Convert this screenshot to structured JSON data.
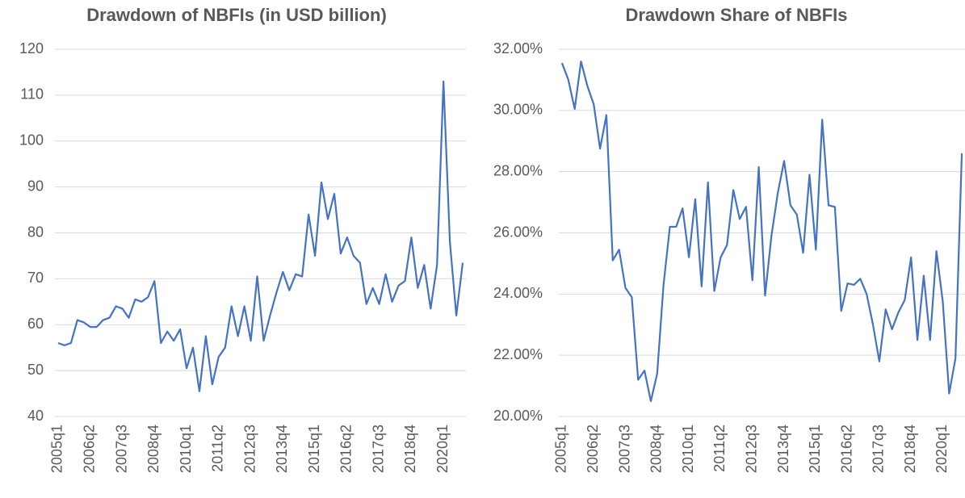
{
  "chart_data": [
    {
      "type": "line",
      "title": "Drawdown of NBFIs (in USD billion)",
      "categories": [
        "2005q1",
        null,
        null,
        null,
        null,
        "2006q2",
        null,
        null,
        null,
        null,
        "2007q3",
        null,
        null,
        null,
        null,
        "2008q4",
        null,
        null,
        null,
        null,
        "2010q1",
        null,
        null,
        null,
        null,
        "2011q2",
        null,
        null,
        null,
        null,
        "2012q3",
        null,
        null,
        null,
        null,
        "2013q4",
        null,
        null,
        null,
        null,
        "2015q1",
        null,
        null,
        null,
        null,
        "2016q2",
        null,
        null,
        null,
        null,
        "2017q3",
        null,
        null,
        null,
        null,
        "2018q4",
        null,
        null,
        null,
        null,
        "2020q1",
        null,
        null,
        null
      ],
      "values": [
        56,
        55.5,
        56,
        61,
        60.5,
        59.5,
        59.5,
        61,
        61.5,
        64,
        63.5,
        61.5,
        65.5,
        65,
        66,
        69.5,
        56,
        58.5,
        56.5,
        59,
        50.5,
        55,
        45.5,
        57.5,
        47,
        53,
        55,
        64,
        57.5,
        64,
        56.5,
        70.5,
        56.5,
        62,
        67,
        71.5,
        67.5,
        71,
        70.5,
        84,
        75,
        91,
        83,
        88.5,
        75.5,
        79,
        75,
        73.5,
        64.5,
        68,
        64.5,
        71,
        65,
        68.5,
        69.5,
        79,
        68,
        73,
        63.5,
        73,
        113,
        78,
        62,
        73.5
      ],
      "color": "#4472c4",
      "ylim": [
        40,
        120
      ],
      "yticks": [
        40,
        50,
        60,
        70,
        80,
        90,
        100,
        110,
        120
      ],
      "grid": true
    },
    {
      "type": "line",
      "title": "Drawdown Share of NBFIs",
      "categories": [
        "2005q1",
        null,
        null,
        null,
        null,
        "2006q2",
        null,
        null,
        null,
        null,
        "2007q3",
        null,
        null,
        null,
        null,
        "2008q4",
        null,
        null,
        null,
        null,
        "2010q1",
        null,
        null,
        null,
        null,
        "2011q2",
        null,
        null,
        null,
        null,
        "2012q3",
        null,
        null,
        null,
        null,
        "2013q4",
        null,
        null,
        null,
        null,
        "2015q1",
        null,
        null,
        null,
        null,
        "2016q2",
        null,
        null,
        null,
        null,
        "2017q3",
        null,
        null,
        null,
        null,
        "2018q4",
        null,
        null,
        null,
        null,
        "2020q1",
        null,
        null,
        null
      ],
      "values": [
        31.55,
        31.0,
        30.05,
        31.6,
        30.8,
        30.2,
        28.75,
        29.85,
        25.1,
        25.45,
        24.2,
        23.9,
        21.2,
        21.5,
        20.5,
        21.4,
        24.3,
        26.2,
        26.2,
        26.8,
        25.2,
        27.1,
        24.25,
        27.65,
        24.1,
        25.2,
        25.6,
        27.4,
        26.45,
        26.85,
        24.45,
        28.15,
        23.95,
        25.9,
        27.3,
        28.35,
        26.9,
        26.6,
        25.35,
        27.9,
        25.45,
        29.7,
        26.9,
        26.85,
        23.45,
        24.35,
        24.3,
        24.5,
        24.0,
        23.0,
        21.8,
        23.5,
        22.85,
        23.4,
        23.8,
        25.2,
        22.5,
        24.6,
        22.5,
        25.4,
        23.75,
        20.75,
        21.9,
        28.6
      ],
      "color": "#4472c4",
      "ylim": [
        20,
        32
      ],
      "yticks": [
        {
          "value": 20,
          "label": "20.00%"
        },
        {
          "value": 22,
          "label": "22.00%"
        },
        {
          "value": 24,
          "label": "24.00%"
        },
        {
          "value": 26,
          "label": "26.00%"
        },
        {
          "value": 28,
          "label": "28.00%"
        },
        {
          "value": 30,
          "label": "30.00%"
        },
        {
          "value": 32,
          "label": "32.00%"
        }
      ],
      "grid": true
    }
  ]
}
